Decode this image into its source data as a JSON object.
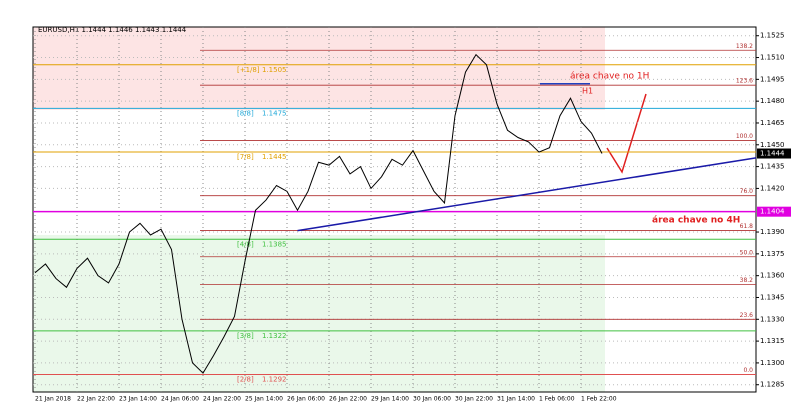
{
  "chart_data": {
    "type": "line",
    "title": "EURUSD,H1  1.1444 1.1446 1.1443 1.1444",
    "categories": [
      "21 Jan 2018",
      null,
      null,
      null,
      "22 Jan 22:00",
      null,
      null,
      null,
      "23 Jan 14:00",
      null,
      null,
      null,
      "24 Jan 06:00",
      null,
      null,
      null,
      "24 Jan 22:00",
      null,
      null,
      null,
      "25 Jan 14:00",
      null,
      null,
      null,
      "26 Jan 06:00",
      null,
      null,
      null,
      "26 Jan 22:00",
      null,
      null,
      null,
      "29 Jan 14:00",
      null,
      null,
      null,
      "30 Jan 06:00",
      null,
      null,
      null,
      "30 Jan 22:00",
      null,
      null,
      null,
      "31 Jan 14:00",
      null,
      null,
      null,
      "1 Feb 06:00",
      null,
      null,
      null,
      "1 Feb 22:00",
      null,
      null
    ],
    "series": [
      {
        "name": "EURUSD,H1",
        "color": "#000000",
        "values": [
          1.1362,
          1.1368,
          1.1358,
          1.1352,
          1.1365,
          1.1372,
          1.136,
          1.1355,
          1.1368,
          1.139,
          1.1396,
          1.1388,
          1.1392,
          1.1378,
          1.133,
          1.13,
          1.1293,
          1.1305,
          1.1318,
          1.1332,
          1.137,
          1.1405,
          1.1412,
          1.1422,
          1.1418,
          1.1405,
          1.1418,
          1.1438,
          1.1436,
          1.1442,
          1.143,
          1.1435,
          1.142,
          1.1428,
          1.144,
          1.1436,
          1.1446,
          1.1432,
          1.1418,
          1.141,
          1.147,
          1.15,
          1.1512,
          1.1505,
          1.1478,
          1.146,
          1.1455,
          1.1452,
          1.1445,
          1.1448,
          1.147,
          1.1482,
          1.1466,
          1.1458,
          1.1444
        ]
      }
    ],
    "ylim": [
      1.128,
      1.1531
    ],
    "yticks": [
      1.1525,
      {
        "value": 1.151,
        "label": "1.1510"
      },
      1.1495,
      {
        "value": 1.148,
        "label": "1.1480"
      },
      1.1465,
      {
        "value": 1.145,
        "label": "1.1450"
      },
      1.1435,
      {
        "value": 1.142,
        "label": "1.1420"
      },
      {
        "value": 1.139,
        "label": "1.1390"
      },
      1.1375,
      {
        "value": 1.136,
        "label": "1.1360"
      },
      1.1345,
      {
        "value": 1.133,
        "label": "1.1330"
      },
      1.1315,
      {
        "value": 1.13,
        "label": "1.1300"
      },
      1.1285
    ],
    "grid": true,
    "zones": [
      {
        "from": 1.1474,
        "to": 1.1531,
        "color": "#fde4e4"
      },
      {
        "from": 1.128,
        "to": 1.1388,
        "color": "#eaf8ea"
      }
    ],
    "fib_levels": [
      {
        "value": 1.1515,
        "label": "138.2"
      },
      {
        "value": 1.1491,
        "label": "123.6"
      },
      {
        "value": 1.1453,
        "label": "100.0"
      },
      {
        "value": 1.1415,
        "label": "76.0"
      },
      {
        "value": 1.1391,
        "label": "61.8"
      },
      {
        "value": 1.1373,
        "label": "50.0"
      },
      {
        "value": 1.1354,
        "label": "38.2"
      },
      {
        "value": 1.133,
        "label": "23.6"
      },
      {
        "value": 1.1292,
        "label": "0.0"
      }
    ],
    "fib_color": "#b03030",
    "murrey_levels": [
      {
        "value": 1.1505,
        "label": "[+1/8]",
        "color": "#e0a000"
      },
      {
        "value": 1.1475,
        "label": "[8/8]",
        "color": "#20a8d8"
      },
      {
        "value": 1.1445,
        "label": "[7/8]",
        "color": "#e0a000"
      },
      {
        "value": 1.1385,
        "label": "[4/8]",
        "color": "#40c040"
      },
      {
        "value": 1.1322,
        "label": "[3/8]",
        "color": "#40c040"
      },
      {
        "value": 1.1292,
        "label": "[2/8]",
        "color": "#e05050"
      }
    ],
    "price_tags": [
      {
        "value": 1.1444,
        "color": "#000000"
      },
      {
        "value": 1.1404,
        "color": "#e000e0"
      }
    ],
    "key_line": {
      "value": 1.1404,
      "color": "#e000e0"
    },
    "key_zone_1h": {
      "value": 1.1492,
      "color": "#2040c0"
    },
    "trend_line": {
      "values": [
        1.1391,
        1.1441
      ],
      "color": "#1a1aa8"
    },
    "annotations": {
      "zone_1h": "área chave no 1H",
      "zone_4h": "área chave no 4H",
      "h1": "H1"
    }
  }
}
